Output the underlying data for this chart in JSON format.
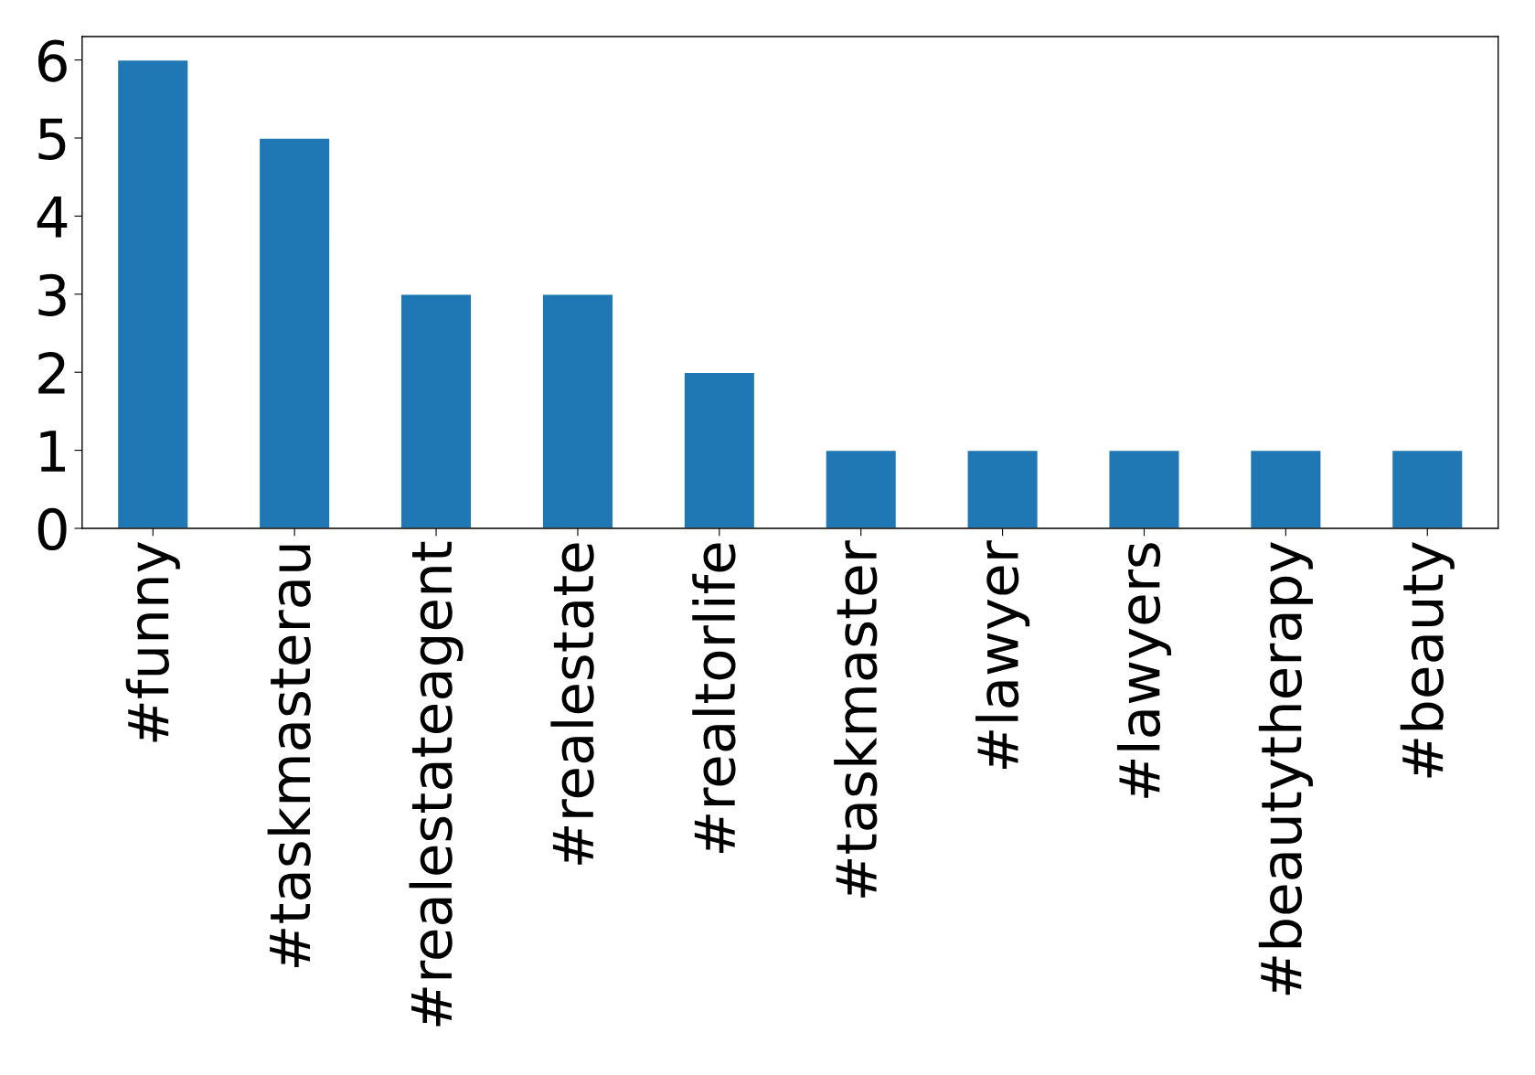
{
  "chart_data": {
    "type": "bar",
    "categories": [
      "#funny",
      "#taskmasterau",
      "#realestateagent",
      "#realestate",
      "#realtorlife",
      "#taskmaster",
      "#lawyer",
      "#lawyers",
      "#beautytherapy",
      "#beauty"
    ],
    "values": [
      6,
      5,
      3,
      3,
      2,
      1,
      1,
      1,
      1,
      1
    ],
    "color": "#1f77b4",
    "ylim": [
      0,
      6.3
    ],
    "yticks": [
      0,
      1,
      2,
      3,
      4,
      5,
      6
    ],
    "grid": false
  }
}
